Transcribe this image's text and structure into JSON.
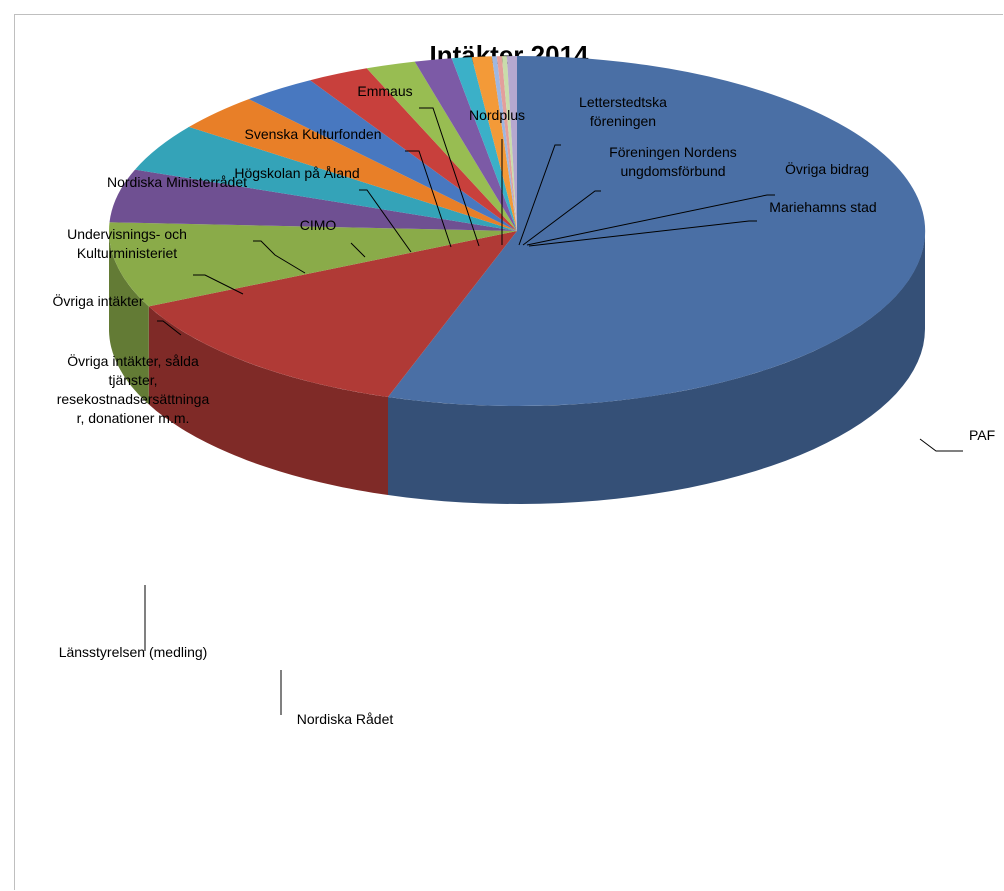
{
  "chart_data": {
    "type": "pie",
    "title": "Intäkter 2014",
    "three_d": true,
    "legend": "none",
    "slices": [
      {
        "label": "PAF",
        "value": 56.0,
        "color": "#4a6fa5"
      },
      {
        "label": "Nordiska Rådet",
        "value": 13.0,
        "color": "#b03a36"
      },
      {
        "label": "Länsstyrelsen (medling)",
        "value": 8.0,
        "color": "#8aab49"
      },
      {
        "label": "Övriga intäkter, sålda tjänster, resekostnadsersättninga r, donationer m.m.",
        "value": 5.0,
        "color": "#6f5092"
      },
      {
        "label": "Övriga intäkter",
        "value": 4.5,
        "color": "#34a3b8"
      },
      {
        "label": "Undervisnings- och Kulturministeriet",
        "value": 3.5,
        "color": "#e87f28"
      },
      {
        "label": "Nordiska Ministerrådet",
        "value": 3.0,
        "color": "#4878c0"
      },
      {
        "label": "CIMO",
        "value": 2.5,
        "color": "#c8403c"
      },
      {
        "label": "Högskolan på Åland",
        "value": 2.0,
        "color": "#98bd52"
      },
      {
        "label": "Svenska Kulturfonden",
        "value": 1.5,
        "color": "#7c5aa6"
      },
      {
        "label": "Emmaus",
        "value": 0.8,
        "color": "#3bb0c8"
      },
      {
        "label": "Nordplus",
        "value": 0.8,
        "color": "#f39a38"
      },
      {
        "label": "Letterstedtska föreningen",
        "value": 0.2,
        "color": "#9eb7e0"
      },
      {
        "label": "Föreningen Nordens ungdomsförbund",
        "value": 0.2,
        "color": "#e39f9b"
      },
      {
        "label": "Övriga bidrag",
        "value": 0.2,
        "color": "#c9dcaa"
      },
      {
        "label": "Mariehamns stad",
        "value": 0.4,
        "color": "#b6a8cf"
      }
    ]
  }
}
